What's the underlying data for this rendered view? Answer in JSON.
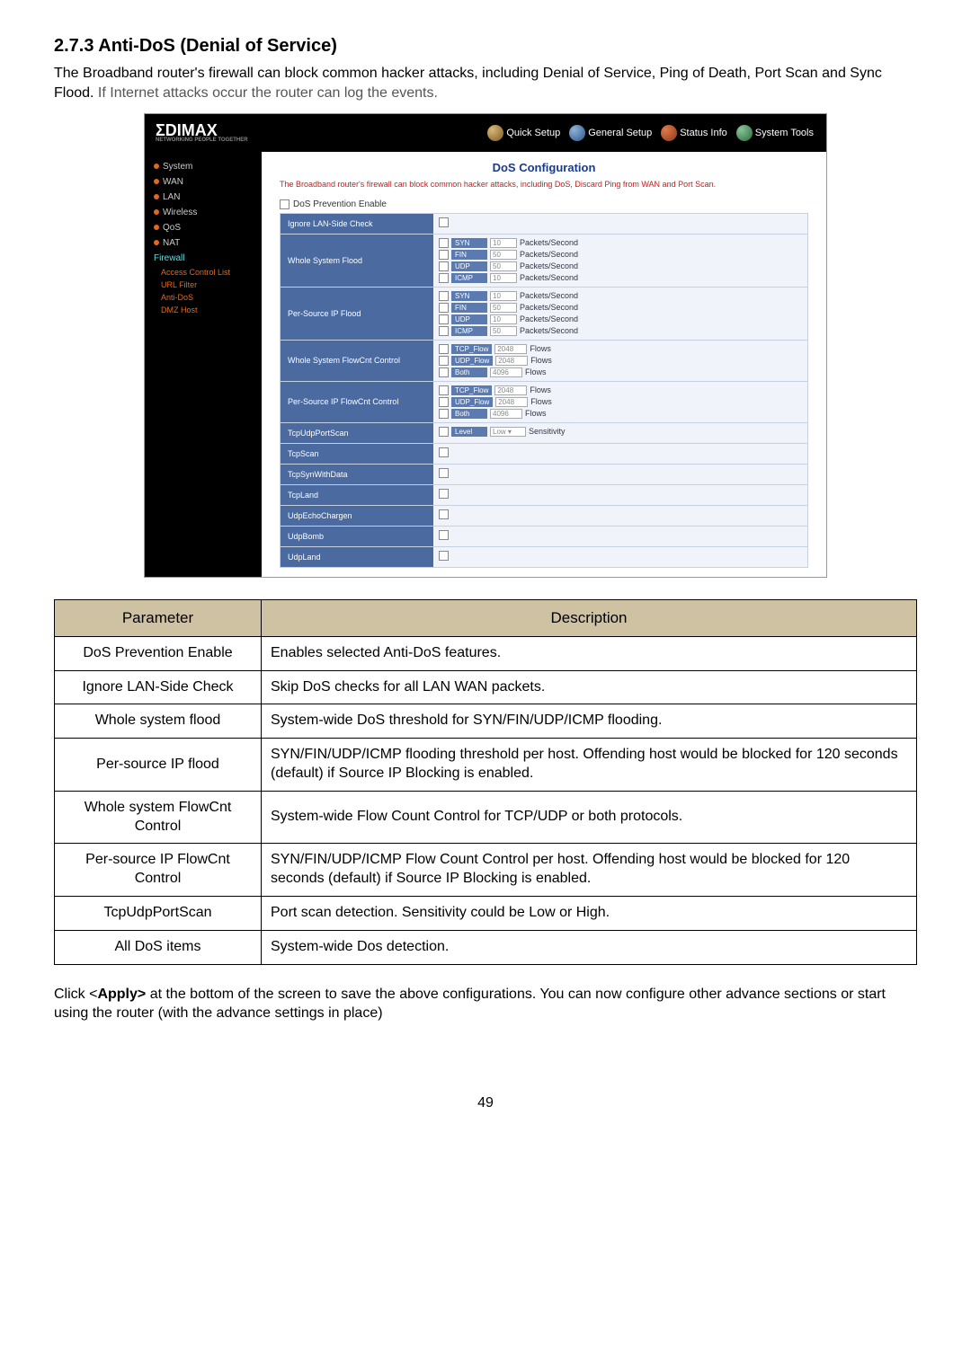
{
  "heading": "2.7.3 Anti-DoS (Denial of Service)",
  "intro_black": "The Broadband router's firewall can block common hacker attacks, including Denial of Service, Ping of Death, Port Scan and Sync Flood. ",
  "intro_grey": "If Internet attacks occur the router can log the events.",
  "ss": {
    "logo": "ΣDIMAX",
    "logo_sub": "NETWORKING PEOPLE TOGETHER",
    "nav": [
      "Quick Setup",
      "General Setup",
      "Status Info",
      "System Tools"
    ],
    "sidebar": {
      "items": [
        "System",
        "WAN",
        "LAN",
        "Wireless",
        "QoS",
        "NAT"
      ],
      "firewall": "Firewall",
      "subs": [
        "Access Control List",
        "URL Filter",
        "Anti-DoS",
        "DMZ Host"
      ]
    },
    "title": "DoS Configuration",
    "desc": "The Broadband router's firewall can block common hacker attacks, including DoS, Discard Ping from WAN and Port Scan.",
    "enable": "DoS Prevention Enable",
    "rows": [
      {
        "label": "Ignore LAN-Side Check",
        "type": "blank"
      },
      {
        "label": "Whole System Flood",
        "type": "flood",
        "items": [
          {
            "tag": "SYN",
            "val": "10",
            "suffix": "Packets/Second"
          },
          {
            "tag": "FIN",
            "val": "50",
            "suffix": "Packets/Second"
          },
          {
            "tag": "UDP",
            "val": "50",
            "suffix": "Packets/Second"
          },
          {
            "tag": "ICMP",
            "val": "10",
            "suffix": "Packets/Second"
          }
        ]
      },
      {
        "label": "Per-Source IP Flood",
        "type": "flood",
        "items": [
          {
            "tag": "SYN",
            "val": "10",
            "suffix": "Packets/Second"
          },
          {
            "tag": "FIN",
            "val": "50",
            "suffix": "Packets/Second"
          },
          {
            "tag": "UDP",
            "val": "10",
            "suffix": "Packets/Second"
          },
          {
            "tag": "ICMP",
            "val": "50",
            "suffix": "Packets/Second"
          }
        ]
      },
      {
        "label": "Whole System FlowCnt Control",
        "type": "flow",
        "items": [
          {
            "tag": "TCP_Flow",
            "val": "2048",
            "suffix": "Flows"
          },
          {
            "tag": "UDP_Flow",
            "val": "2048",
            "suffix": "Flows"
          },
          {
            "tag": "Both",
            "val": "4096",
            "suffix": "Flows"
          }
        ]
      },
      {
        "label": "Per-Source IP FlowCnt Control",
        "type": "flow",
        "items": [
          {
            "tag": "TCP_Flow",
            "val": "2048",
            "suffix": "Flows"
          },
          {
            "tag": "UDP_Flow",
            "val": "2048",
            "suffix": "Flows"
          },
          {
            "tag": "Both",
            "val": "4096",
            "suffix": "Flows"
          }
        ]
      },
      {
        "label": "TcpUdpPortScan",
        "type": "level",
        "level_tag": "Level",
        "level_val": "Low",
        "suffix": "Sensitivity"
      },
      {
        "label": "TcpScan",
        "type": "blank"
      },
      {
        "label": "TcpSynWithData",
        "type": "blank"
      },
      {
        "label": "TcpLand",
        "type": "blank"
      },
      {
        "label": "UdpEchoChargen",
        "type": "blank"
      },
      {
        "label": "UdpBomb",
        "type": "blank"
      },
      {
        "label": "UdpLand",
        "type": "blank"
      }
    ]
  },
  "param_headers": [
    "Parameter",
    "Description"
  ],
  "params": [
    {
      "p": "DoS Prevention Enable",
      "d": "Enables selected Anti-DoS features."
    },
    {
      "p": "Ignore LAN-Side Check",
      "d": "Skip DoS checks for all LAN   WAN packets."
    },
    {
      "p": "Whole system flood",
      "d": "System-wide DoS threshold for SYN/FIN/UDP/ICMP flooding."
    },
    {
      "p": "Per-source IP flood",
      "d": "SYN/FIN/UDP/ICMP flooding threshold per host. Offending host would be blocked for 120 seconds (default) if Source IP Blocking is enabled."
    },
    {
      "p": "Whole system FlowCnt Control",
      "d": "System-wide Flow Count Control for TCP/UDP or both protocols."
    },
    {
      "p": "Per-source IP FlowCnt Control",
      "d": "SYN/FIN/UDP/ICMP Flow Count Control per host. Offending host would be blocked for 120 seconds (default) if Source IP Blocking is enabled."
    },
    {
      "p": "TcpUdpPortScan",
      "d": "Port scan detection. Sensitivity could be Low or High."
    },
    {
      "p": "All DoS items",
      "d": "System-wide Dos detection."
    }
  ],
  "closing_a": "Click <",
  "closing_b": "Apply>",
  "closing_c": " at the bottom of the screen to save the above configurations. You can now configure other advance sections or start using the router (with the advance settings in place)",
  "page_num": "49"
}
